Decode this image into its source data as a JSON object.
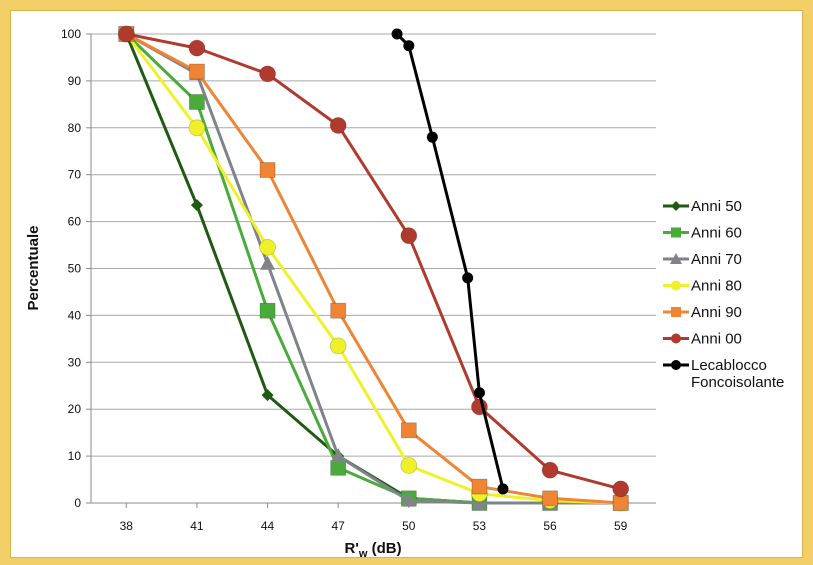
{
  "chart_data": {
    "type": "line",
    "xlabel": "R'w (dB)",
    "ylabel": "Percentuale",
    "x": [
      38,
      41,
      44,
      47,
      50,
      53,
      56,
      59
    ],
    "xlim": [
      36.5,
      60.5
    ],
    "ylim": [
      0,
      100
    ],
    "yticks": [
      0,
      10,
      20,
      30,
      40,
      50,
      60,
      70,
      80,
      90,
      100
    ],
    "grid": "horizontal",
    "legend_position": "right",
    "series": [
      {
        "name": "Anni 50",
        "color": "#1e5a12",
        "marker": "diamond",
        "points": [
          [
            38,
            100
          ],
          [
            41,
            63.5
          ],
          [
            44,
            23
          ],
          [
            47,
            10
          ],
          [
            50,
            1
          ],
          [
            53,
            0
          ],
          [
            56,
            0
          ],
          [
            59,
            0
          ]
        ]
      },
      {
        "name": "Anni 60",
        "color": "#4aab3c",
        "marker": "square",
        "points": [
          [
            38,
            100
          ],
          [
            41,
            85.5
          ],
          [
            44,
            41
          ],
          [
            47,
            7.5
          ],
          [
            50,
            1
          ],
          [
            53,
            0
          ],
          [
            56,
            0
          ],
          [
            59,
            0
          ]
        ]
      },
      {
        "name": "Anni 70",
        "color": "#7f8488",
        "marker": "triangle",
        "points": [
          [
            38,
            100
          ],
          [
            41,
            91.5
          ],
          [
            44,
            51
          ],
          [
            47,
            10
          ],
          [
            50,
            0.5
          ],
          [
            53,
            0
          ],
          [
            56,
            0
          ],
          [
            59,
            0
          ]
        ]
      },
      {
        "name": "Anni 80",
        "color": "#f0f02a",
        "marker": "circle",
        "points": [
          [
            38,
            100
          ],
          [
            41,
            80
          ],
          [
            44,
            54.5
          ],
          [
            47,
            33.5
          ],
          [
            50,
            8
          ],
          [
            53,
            2
          ],
          [
            56,
            0.5
          ],
          [
            59,
            0
          ]
        ]
      },
      {
        "name": "Anni 90",
        "color": "#ef8434",
        "marker": "square",
        "points": [
          [
            38,
            100
          ],
          [
            41,
            92
          ],
          [
            44,
            71
          ],
          [
            47,
            41
          ],
          [
            50,
            15.5
          ],
          [
            53,
            3.5
          ],
          [
            56,
            1
          ],
          [
            59,
            0
          ]
        ]
      },
      {
        "name": "Anni 00",
        "color": "#b03a2e",
        "marker": "circle",
        "points": [
          [
            38,
            100
          ],
          [
            41,
            97
          ],
          [
            44,
            91.5
          ],
          [
            47,
            80.5
          ],
          [
            50,
            57
          ],
          [
            53,
            20.5
          ],
          [
            56,
            7
          ],
          [
            59,
            3
          ]
        ]
      },
      {
        "name": "Lecablocco Foncoisolante",
        "color": "#000000",
        "marker": "circle-small",
        "legend_lines": [
          "Lecablocco",
          "Foncoisolante"
        ],
        "points": [
          [
            49.5,
            100
          ],
          [
            50,
            97.5
          ],
          [
            51,
            78
          ],
          [
            52.5,
            48
          ],
          [
            53,
            23.5
          ],
          [
            54,
            3
          ]
        ]
      }
    ]
  }
}
